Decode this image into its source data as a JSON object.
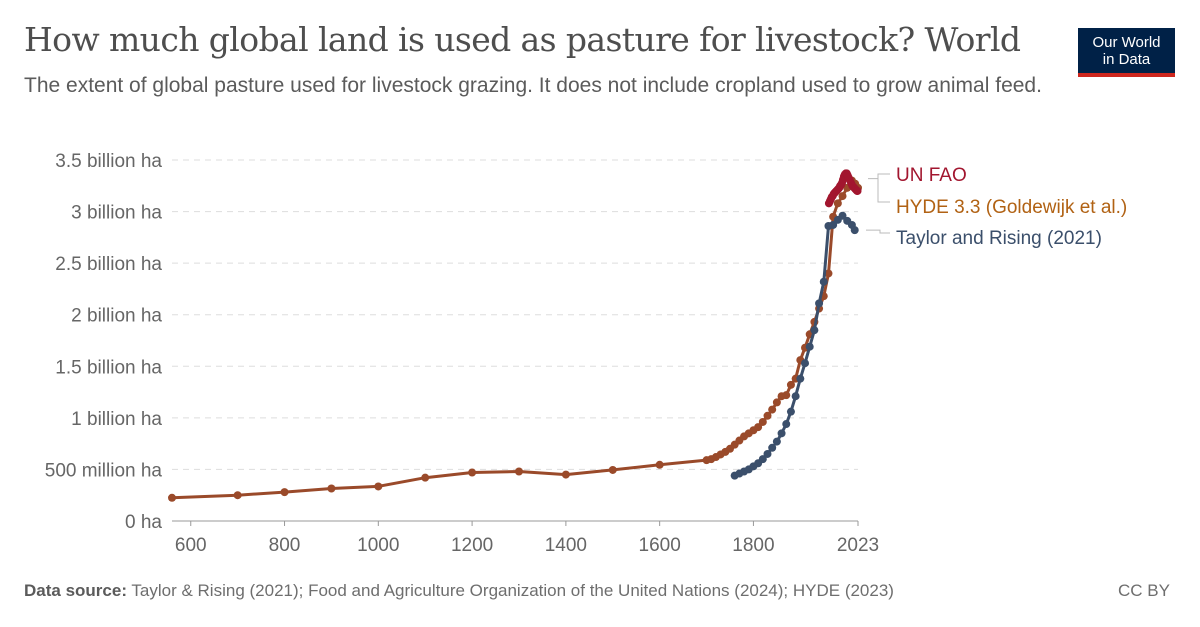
{
  "header": {
    "title": "How much global land is used as pasture for livestock? World",
    "subtitle": "The extent of global pasture used for livestock grazing. It does not include cropland used to grow animal feed."
  },
  "logo": {
    "line1": "Our World",
    "line2": "in Data"
  },
  "footer": {
    "source_label": "Data source:",
    "source_text": " Taylor & Rising (2021); Food and Agriculture Organization of the United Nations (2024); HYDE (2023)",
    "license": "CC BY"
  },
  "chart_data": {
    "type": "line",
    "y_ticks": [
      {
        "value": 0,
        "label": "0 ha"
      },
      {
        "value": 500000000,
        "label": "500 million ha"
      },
      {
        "value": 1000000000,
        "label": "1 billion ha"
      },
      {
        "value": 1500000000,
        "label": "1.5 billion ha"
      },
      {
        "value": 2000000000,
        "label": "2 billion ha"
      },
      {
        "value": 2500000000,
        "label": "2.5 billion ha"
      },
      {
        "value": 3000000000,
        "label": "3 billion ha"
      },
      {
        "value": 3500000000,
        "label": "3.5 billion ha"
      }
    ],
    "x_ticks": [
      {
        "value": 600,
        "label": "600"
      },
      {
        "value": 800,
        "label": "800"
      },
      {
        "value": 1000,
        "label": "1000"
      },
      {
        "value": 1200,
        "label": "1200"
      },
      {
        "value": 1400,
        "label": "1400"
      },
      {
        "value": 1600,
        "label": "1600"
      },
      {
        "value": 1800,
        "label": "1800"
      },
      {
        "value": 2023,
        "label": "2023"
      }
    ],
    "xlim": [
      560,
      2023
    ],
    "ylim": [
      0,
      3500000000
    ],
    "grid": true,
    "series": [
      {
        "name": "HYDE 3.3 (Goldewijk et al.)",
        "color": "#b16214",
        "line_color": "#9a4a2a",
        "x": [
          560,
          700,
          800,
          900,
          1000,
          1100,
          1200,
          1300,
          1400,
          1500,
          1600,
          1700,
          1710,
          1720,
          1730,
          1740,
          1750,
          1760,
          1770,
          1780,
          1790,
          1800,
          1810,
          1820,
          1830,
          1840,
          1850,
          1860,
          1870,
          1880,
          1890,
          1900,
          1910,
          1920,
          1930,
          1940,
          1950,
          1960,
          1970,
          1980,
          1990,
          2000,
          2010,
          2017,
          2023
        ],
        "y": [
          225000000,
          250000000,
          280000000,
          315000000,
          335000000,
          420000000,
          470000000,
          480000000,
          450000000,
          495000000,
          545000000,
          590000000,
          600000000,
          620000000,
          645000000,
          670000000,
          700000000,
          740000000,
          780000000,
          820000000,
          850000000,
          880000000,
          910000000,
          960000000,
          1020000000,
          1080000000,
          1150000000,
          1210000000,
          1220000000,
          1320000000,
          1380000000,
          1560000000,
          1680000000,
          1810000000,
          1930000000,
          2060000000,
          2180000000,
          2400000000,
          2950000000,
          3080000000,
          3150000000,
          3230000000,
          3300000000,
          3270000000,
          3230000000
        ]
      },
      {
        "name": "UN FAO",
        "color": "#a2162f",
        "x": [
          1961,
          1963,
          1965,
          1967,
          1969,
          1971,
          1973,
          1975,
          1977,
          1979,
          1981,
          1983,
          1985,
          1987,
          1989,
          1991,
          1993,
          1995,
          1997,
          1999,
          2001,
          2003,
          2005,
          2007,
          2009,
          2011,
          2013,
          2015,
          2017,
          2019,
          2021,
          2022
        ],
        "y": [
          3080000000,
          3100000000,
          3120000000,
          3140000000,
          3150000000,
          3170000000,
          3180000000,
          3190000000,
          3200000000,
          3210000000,
          3220000000,
          3230000000,
          3250000000,
          3260000000,
          3280000000,
          3310000000,
          3340000000,
          3360000000,
          3370000000,
          3370000000,
          3350000000,
          3330000000,
          3310000000,
          3290000000,
          3270000000,
          3250000000,
          3240000000,
          3230000000,
          3220000000,
          3210000000,
          3200000000,
          3200000000
        ]
      },
      {
        "name": "Taylor and Rising (2021)",
        "color": "#3b4f6b",
        "x": [
          1760,
          1770,
          1780,
          1790,
          1800,
          1810,
          1820,
          1830,
          1840,
          1850,
          1860,
          1870,
          1880,
          1890,
          1900,
          1910,
          1920,
          1930,
          1940,
          1950,
          1960,
          1970,
          1980,
          1990,
          2000,
          2010,
          2016
        ],
        "y": [
          440000000,
          460000000,
          480000000,
          500000000,
          530000000,
          560000000,
          600000000,
          650000000,
          710000000,
          770000000,
          850000000,
          940000000,
          1060000000,
          1210000000,
          1380000000,
          1530000000,
          1690000000,
          1850000000,
          2110000000,
          2320000000,
          2860000000,
          2870000000,
          2920000000,
          2960000000,
          2910000000,
          2870000000,
          2820000000
        ]
      }
    ]
  }
}
